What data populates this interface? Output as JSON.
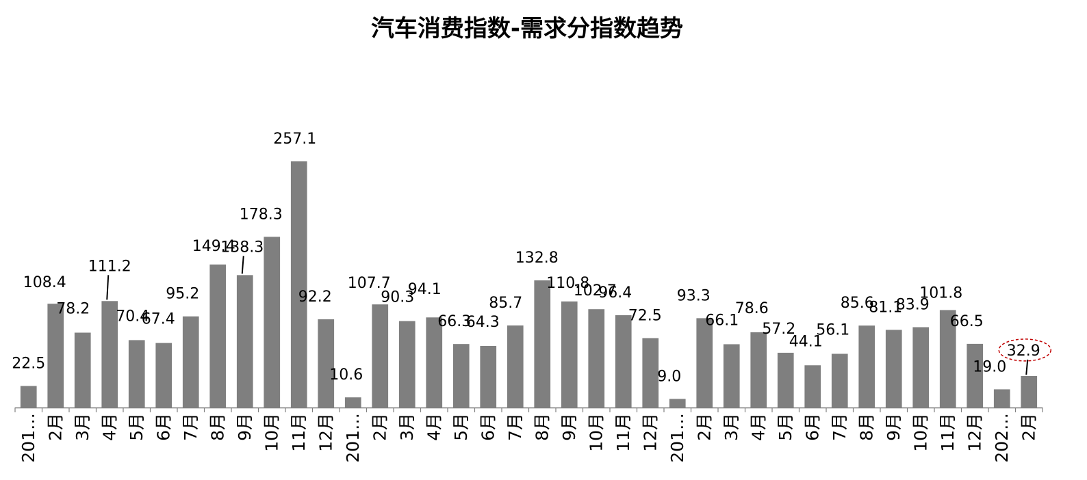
{
  "chart_data": {
    "type": "bar",
    "title": "汽车消费指数-需求分指数趋势",
    "xlabel": "",
    "ylabel": "",
    "ylim": [
      0,
      275
    ],
    "grid": false,
    "legend": "none",
    "colors": {
      "bar": "#7f7f7f",
      "axis": "#7f7f7f",
      "highlight_ellipse": "#c00000"
    },
    "categories": [
      "201…",
      "2月",
      "3月",
      "4月",
      "5月",
      "6月",
      "7月",
      "8月",
      "9月",
      "10月",
      "11月",
      "12月",
      "201…",
      "2月",
      "3月",
      "4月",
      "5月",
      "6月",
      "7月",
      "8月",
      "9月",
      "10月",
      "11月",
      "12月",
      "201…",
      "2月",
      "3月",
      "4月",
      "5月",
      "6月",
      "7月",
      "8月",
      "9月",
      "10月",
      "11月",
      "12月",
      "202…",
      "2月"
    ],
    "values": [
      22.5,
      108.4,
      78.2,
      111.2,
      70.4,
      67.4,
      95.2,
      149.4,
      138.3,
      178.3,
      257.1,
      92.2,
      10.6,
      107.7,
      90.3,
      94.1,
      66.3,
      64.3,
      85.7,
      132.8,
      110.8,
      102.7,
      96.4,
      72.5,
      9.0,
      93.3,
      66.1,
      78.6,
      57.2,
      44.1,
      56.1,
      85.6,
      81.1,
      83.9,
      101.8,
      66.5,
      19.0,
      32.9
    ],
    "data_labels": [
      "22.5",
      "108.4",
      "78.2",
      "111.2",
      "70.4",
      "67.4",
      "95.2",
      "149.4",
      "138.3",
      "178.3",
      "257.1",
      "92.2",
      "10.6",
      "107.7",
      "90.3",
      "94.1",
      "66.3",
      "64.3",
      "85.7",
      "132.8",
      "110.8",
      "102.7",
      "96.4",
      "72.5",
      "9.0",
      "93.3",
      "66.1",
      "78.6",
      "57.2",
      "44.1",
      "56.1",
      "85.6",
      "81.1",
      "83.9",
      "101.8",
      "66.5",
      "19.0",
      "32.9"
    ],
    "highlighted_index": 37
  }
}
